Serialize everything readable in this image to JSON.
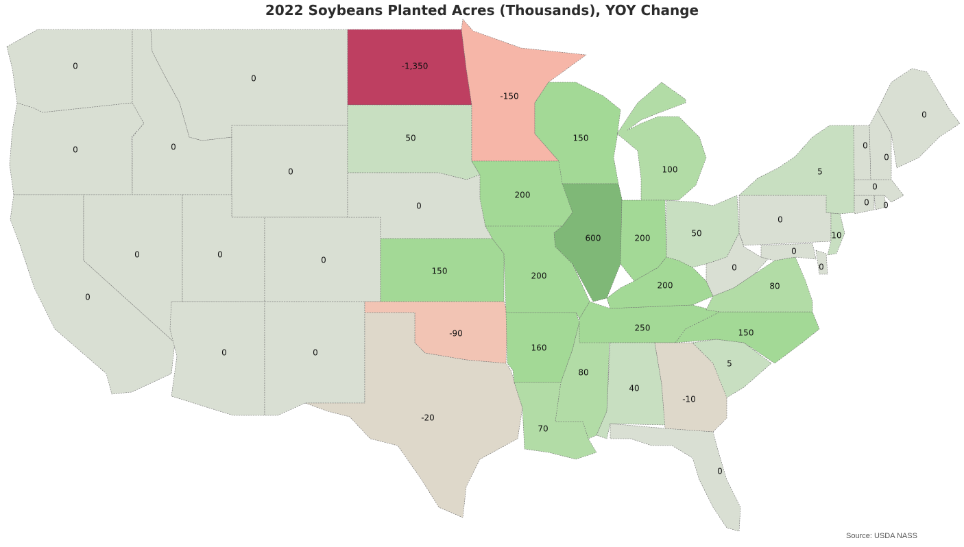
{
  "title": "2022 Soybeans Planted Acres (Thousands), YOY Change",
  "source": "Source: USDA NASS",
  "colors": {
    "zero": "#d9dfd3",
    "negative_small": "#ded8ca",
    "negative_medium": "#f2c4b4",
    "negative_large": "#f6b6a8",
    "negative_extreme": "#be3f61",
    "positive_small": "#c8dfc1",
    "positive_medium": "#b2dca6",
    "positive_large": "#a3d996",
    "positive_extreme": "#7fb877"
  },
  "chart_data": {
    "type": "choropleth",
    "title": "2022 Soybeans Planted Acres (Thousands), YOY Change",
    "unit": "Thousands of acres, YOY change",
    "states": [
      {
        "id": "WA",
        "label": "0",
        "value": 0
      },
      {
        "id": "OR",
        "label": "0",
        "value": 0
      },
      {
        "id": "CA",
        "label": "0",
        "value": 0
      },
      {
        "id": "ID",
        "label": "0",
        "value": 0
      },
      {
        "id": "NV",
        "label": "0",
        "value": 0
      },
      {
        "id": "MT",
        "label": "0",
        "value": 0
      },
      {
        "id": "WY",
        "label": "0",
        "value": 0
      },
      {
        "id": "UT",
        "label": "0",
        "value": 0
      },
      {
        "id": "AZ",
        "label": "0",
        "value": 0
      },
      {
        "id": "CO",
        "label": "0",
        "value": 0
      },
      {
        "id": "NM",
        "label": "0",
        "value": 0
      },
      {
        "id": "ND",
        "label": "-1,350",
        "value": -1350
      },
      {
        "id": "SD",
        "label": "50",
        "value": 50
      },
      {
        "id": "NE",
        "label": "0",
        "value": 0
      },
      {
        "id": "KS",
        "label": "150",
        "value": 150
      },
      {
        "id": "OK",
        "label": "-90",
        "value": -90
      },
      {
        "id": "TX",
        "label": "-20",
        "value": -20
      },
      {
        "id": "MN",
        "label": "-150",
        "value": -150
      },
      {
        "id": "IA",
        "label": "200",
        "value": 200
      },
      {
        "id": "MO",
        "label": "200",
        "value": 200
      },
      {
        "id": "AR",
        "label": "160",
        "value": 160
      },
      {
        "id": "LA",
        "label": "70",
        "value": 70
      },
      {
        "id": "WI",
        "label": "150",
        "value": 150
      },
      {
        "id": "IL",
        "label": "600",
        "value": 600
      },
      {
        "id": "MS",
        "label": "80",
        "value": 80
      },
      {
        "id": "MI",
        "label": "100",
        "value": 100
      },
      {
        "id": "IN",
        "label": "200",
        "value": 200
      },
      {
        "id": "KY",
        "label": "200",
        "value": 200
      },
      {
        "id": "TN",
        "label": "250",
        "value": 250
      },
      {
        "id": "AL",
        "label": "40",
        "value": 40
      },
      {
        "id": "OH",
        "label": "50",
        "value": 50
      },
      {
        "id": "GA",
        "label": "-10",
        "value": -10
      },
      {
        "id": "FL",
        "label": "0",
        "value": 0
      },
      {
        "id": "SC",
        "label": "5",
        "value": 5
      },
      {
        "id": "NC",
        "label": "150",
        "value": 150
      },
      {
        "id": "VA",
        "label": "80",
        "value": 80
      },
      {
        "id": "WV",
        "label": "0",
        "value": 0
      },
      {
        "id": "MD",
        "label": "0",
        "value": 0
      },
      {
        "id": "DE",
        "label": "0",
        "value": 0
      },
      {
        "id": "PA",
        "label": "0",
        "value": 0
      },
      {
        "id": "NJ",
        "label": "10",
        "value": 10
      },
      {
        "id": "NY",
        "label": "5",
        "value": 5
      },
      {
        "id": "CT",
        "label": "0",
        "value": 0
      },
      {
        "id": "RI",
        "label": "0",
        "value": 0
      },
      {
        "id": "MA",
        "label": "0",
        "value": 0
      },
      {
        "id": "VT",
        "label": "0",
        "value": 0
      },
      {
        "id": "NH",
        "label": "0",
        "value": 0
      },
      {
        "id": "ME",
        "label": "0",
        "value": 0
      }
    ]
  }
}
